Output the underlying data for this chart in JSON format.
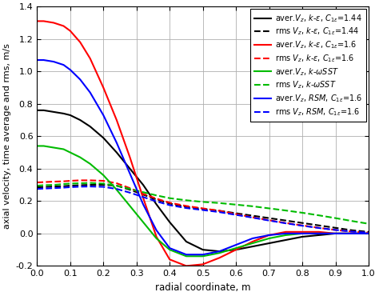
{
  "xlabel": "radial coordinate, m",
  "ylabel": "axial velocity, time average and rms, m/s",
  "xlim": [
    0,
    1.0
  ],
  "ylim": [
    -0.2,
    1.4
  ],
  "xticks": [
    0,
    0.1,
    0.2,
    0.3,
    0.4,
    0.5,
    0.6,
    0.7,
    0.8,
    0.9,
    1.0
  ],
  "yticks": [
    -0.2,
    0,
    0.2,
    0.4,
    0.6,
    0.8,
    1.0,
    1.2,
    1.4
  ],
  "curves": [
    {
      "color": "#000000",
      "linestyle": "solid",
      "linewidth": 1.5,
      "x": [
        0.0,
        0.02,
        0.05,
        0.08,
        0.1,
        0.13,
        0.16,
        0.2,
        0.24,
        0.28,
        0.32,
        0.36,
        0.4,
        0.45,
        0.5,
        0.55,
        0.6,
        0.65,
        0.7,
        0.75,
        0.8,
        0.85,
        0.9,
        0.95,
        1.0
      ],
      "y": [
        0.76,
        0.76,
        0.75,
        0.74,
        0.73,
        0.7,
        0.66,
        0.59,
        0.5,
        0.4,
        0.3,
        0.18,
        0.07,
        -0.05,
        -0.1,
        -0.11,
        -0.1,
        -0.08,
        -0.06,
        -0.04,
        -0.02,
        -0.01,
        0.0,
        0.0,
        0.0
      ]
    },
    {
      "color": "#000000",
      "linestyle": "dashed",
      "linewidth": 1.5,
      "x": [
        0.0,
        0.02,
        0.05,
        0.08,
        0.1,
        0.13,
        0.16,
        0.2,
        0.24,
        0.28,
        0.32,
        0.36,
        0.4,
        0.45,
        0.5,
        0.55,
        0.6,
        0.65,
        0.7,
        0.75,
        0.8,
        0.85,
        0.9,
        0.95,
        1.0
      ],
      "y": [
        0.285,
        0.287,
        0.29,
        0.292,
        0.295,
        0.298,
        0.3,
        0.3,
        0.295,
        0.27,
        0.24,
        0.21,
        0.185,
        0.165,
        0.152,
        0.14,
        0.125,
        0.11,
        0.095,
        0.08,
        0.065,
        0.05,
        0.035,
        0.02,
        0.01
      ]
    },
    {
      "color": "#ff0000",
      "linestyle": "solid",
      "linewidth": 1.5,
      "x": [
        0.0,
        0.02,
        0.05,
        0.08,
        0.1,
        0.13,
        0.16,
        0.2,
        0.24,
        0.28,
        0.32,
        0.36,
        0.4,
        0.45,
        0.5,
        0.55,
        0.6,
        0.65,
        0.7,
        0.75,
        0.8,
        0.85,
        0.9,
        0.95,
        1.0
      ],
      "y": [
        1.31,
        1.31,
        1.3,
        1.28,
        1.25,
        1.18,
        1.08,
        0.9,
        0.7,
        0.47,
        0.22,
        -0.02,
        -0.16,
        -0.2,
        -0.19,
        -0.15,
        -0.1,
        -0.05,
        -0.01,
        0.01,
        0.01,
        0.01,
        0.0,
        0.0,
        0.0
      ]
    },
    {
      "color": "#ff0000",
      "linestyle": "dashed",
      "linewidth": 1.5,
      "x": [
        0.0,
        0.02,
        0.05,
        0.08,
        0.1,
        0.13,
        0.16,
        0.2,
        0.24,
        0.28,
        0.32,
        0.36,
        0.4,
        0.45,
        0.5,
        0.55,
        0.6,
        0.65,
        0.7,
        0.75,
        0.8,
        0.85,
        0.9,
        0.95,
        1.0
      ],
      "y": [
        0.315,
        0.317,
        0.32,
        0.322,
        0.325,
        0.328,
        0.328,
        0.325,
        0.31,
        0.28,
        0.245,
        0.215,
        0.19,
        0.17,
        0.155,
        0.14,
        0.12,
        0.1,
        0.082,
        0.065,
        0.05,
        0.035,
        0.022,
        0.012,
        0.005
      ]
    },
    {
      "color": "#00bb00",
      "linestyle": "solid",
      "linewidth": 1.5,
      "x": [
        0.0,
        0.02,
        0.05,
        0.08,
        0.1,
        0.13,
        0.16,
        0.2,
        0.24,
        0.28,
        0.32,
        0.36,
        0.4,
        0.45,
        0.5,
        0.55,
        0.6,
        0.65,
        0.7,
        0.75,
        0.8,
        0.85,
        0.9,
        0.95,
        1.0
      ],
      "y": [
        0.54,
        0.54,
        0.53,
        0.52,
        0.5,
        0.47,
        0.43,
        0.36,
        0.27,
        0.17,
        0.07,
        -0.03,
        -0.1,
        -0.14,
        -0.14,
        -0.12,
        -0.09,
        -0.06,
        -0.03,
        -0.01,
        0.0,
        0.0,
        0.0,
        0.0,
        0.0
      ]
    },
    {
      "color": "#00bb00",
      "linestyle": "dashed",
      "linewidth": 1.5,
      "x": [
        0.0,
        0.02,
        0.05,
        0.08,
        0.1,
        0.13,
        0.16,
        0.2,
        0.24,
        0.28,
        0.32,
        0.36,
        0.4,
        0.45,
        0.5,
        0.55,
        0.6,
        0.65,
        0.7,
        0.75,
        0.8,
        0.85,
        0.9,
        0.95,
        1.0
      ],
      "y": [
        0.295,
        0.298,
        0.3,
        0.305,
        0.308,
        0.31,
        0.312,
        0.308,
        0.295,
        0.275,
        0.255,
        0.235,
        0.218,
        0.205,
        0.195,
        0.188,
        0.178,
        0.168,
        0.155,
        0.142,
        0.128,
        0.112,
        0.095,
        0.077,
        0.06
      ]
    },
    {
      "color": "#0000ff",
      "linestyle": "solid",
      "linewidth": 1.5,
      "x": [
        0.0,
        0.02,
        0.05,
        0.08,
        0.1,
        0.13,
        0.16,
        0.2,
        0.24,
        0.28,
        0.32,
        0.36,
        0.4,
        0.45,
        0.5,
        0.55,
        0.6,
        0.65,
        0.7,
        0.75,
        0.8,
        0.85,
        0.9,
        0.95,
        1.0
      ],
      "y": [
        1.07,
        1.07,
        1.06,
        1.04,
        1.01,
        0.95,
        0.87,
        0.73,
        0.56,
        0.37,
        0.18,
        0.02,
        -0.09,
        -0.13,
        -0.13,
        -0.11,
        -0.07,
        -0.03,
        -0.01,
        0.0,
        0.0,
        0.0,
        0.0,
        0.0,
        0.0
      ]
    },
    {
      "color": "#0000ff",
      "linestyle": "dashed",
      "linewidth": 1.5,
      "x": [
        0.0,
        0.02,
        0.05,
        0.08,
        0.1,
        0.13,
        0.16,
        0.2,
        0.24,
        0.28,
        0.32,
        0.36,
        0.4,
        0.45,
        0.5,
        0.55,
        0.6,
        0.65,
        0.7,
        0.75,
        0.8,
        0.85,
        0.9,
        0.95,
        1.0
      ],
      "y": [
        0.275,
        0.277,
        0.28,
        0.283,
        0.286,
        0.289,
        0.29,
        0.288,
        0.275,
        0.252,
        0.225,
        0.198,
        0.175,
        0.157,
        0.145,
        0.132,
        0.115,
        0.098,
        0.08,
        0.063,
        0.048,
        0.034,
        0.022,
        0.012,
        0.005
      ]
    }
  ],
  "legend_entries": [
    "aver.V_z, k-ε, C_{1ε}=1.44",
    "rms V_z, k-ε, C_{1ε}=1.44",
    "aver.V_z, k-ε, C_{1ε}=1.6",
    "rms V_z, k-ε, C_{1ε}=1.6",
    "aver.V_z, k-ωSST",
    "rms V_z, k-ωSST",
    "aver.V_z, RSM, C_{1ε}=1.6",
    "rms V_z, RSM, C_{1ε}=1.6"
  ],
  "legend_fontsize": 7,
  "grid_color": "#b0b0b0",
  "background_color": "#ffffff",
  "fig_width": 4.74,
  "fig_height": 3.7,
  "dpi": 100
}
